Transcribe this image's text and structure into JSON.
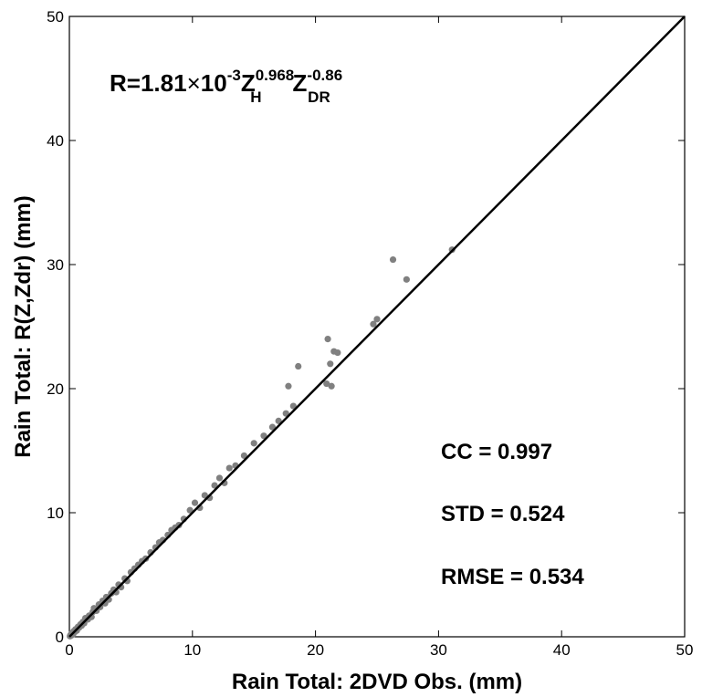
{
  "chart_data": {
    "type": "scatter",
    "title": "",
    "xlabel": "Rain Total: 2DVD Obs. (mm)",
    "ylabel": "Rain Total: R(Z,Zdr) (mm)",
    "xlim": [
      0,
      50
    ],
    "ylim": [
      0,
      50
    ],
    "x_ticks": [
      0,
      10,
      20,
      30,
      40,
      50
    ],
    "y_ticks": [
      0,
      10,
      20,
      30,
      40,
      50
    ],
    "grid": false,
    "point_color": "#808080",
    "line_color": "#000000",
    "reference_line": {
      "from": [
        0,
        0
      ],
      "to": [
        50,
        50
      ]
    },
    "formula": {
      "lhs": "R=1.81",
      "times": "×",
      "ten": "10",
      "ten_exp": "-3",
      "z1": "Z",
      "z1_sub": "H",
      "z1_sup": "0.968",
      "z2": "Z",
      "z2_sub": "DR",
      "z2_sup": "-0.86"
    },
    "stats": {
      "cc": "CC = 0.997",
      "std": "STD = 0.524",
      "rmse": "RMSE = 0.534"
    },
    "series": [
      {
        "points": [
          [
            0.05,
            0.05
          ],
          [
            0.1,
            0.15
          ],
          [
            0.15,
            0.1
          ],
          [
            0.2,
            0.3
          ],
          [
            0.3,
            0.2
          ],
          [
            0.35,
            0.45
          ],
          [
            0.45,
            0.4
          ],
          [
            0.5,
            0.6
          ],
          [
            0.6,
            0.5
          ],
          [
            0.7,
            0.8
          ],
          [
            0.8,
            0.75
          ],
          [
            0.9,
            1.0
          ],
          [
            1.0,
            0.9
          ],
          [
            1.1,
            1.2
          ],
          [
            1.2,
            1.1
          ],
          [
            1.3,
            1.5
          ],
          [
            1.5,
            1.4
          ],
          [
            1.6,
            1.7
          ],
          [
            1.8,
            1.6
          ],
          [
            1.9,
            2.0
          ],
          [
            2.0,
            2.3
          ],
          [
            2.2,
            2.1
          ],
          [
            2.4,
            2.6
          ],
          [
            2.5,
            2.4
          ],
          [
            2.7,
            2.9
          ],
          [
            2.9,
            2.7
          ],
          [
            3.0,
            3.2
          ],
          [
            3.2,
            3.0
          ],
          [
            3.4,
            3.5
          ],
          [
            3.6,
            3.8
          ],
          [
            3.8,
            3.6
          ],
          [
            4.0,
            4.2
          ],
          [
            4.2,
            4.0
          ],
          [
            4.5,
            4.7
          ],
          [
            4.7,
            4.5
          ],
          [
            5.0,
            5.2
          ],
          [
            5.3,
            5.5
          ],
          [
            5.6,
            5.8
          ],
          [
            5.9,
            6.1
          ],
          [
            6.2,
            6.3
          ],
          [
            6.6,
            6.8
          ],
          [
            7.0,
            7.2
          ],
          [
            7.3,
            7.6
          ],
          [
            7.6,
            7.8
          ],
          [
            8.0,
            8.2
          ],
          [
            8.3,
            8.6
          ],
          [
            8.6,
            8.8
          ],
          [
            8.9,
            9.0
          ],
          [
            9.3,
            9.5
          ],
          [
            9.8,
            10.2
          ],
          [
            10.2,
            10.8
          ],
          [
            10.6,
            10.4
          ],
          [
            11.0,
            11.4
          ],
          [
            11.4,
            11.2
          ],
          [
            11.8,
            12.2
          ],
          [
            12.2,
            12.8
          ],
          [
            12.6,
            12.4
          ],
          [
            13.0,
            13.6
          ],
          [
            13.5,
            13.8
          ],
          [
            14.2,
            14.6
          ],
          [
            15.0,
            15.6
          ],
          [
            15.8,
            16.2
          ],
          [
            16.5,
            16.9
          ],
          [
            17.0,
            17.4
          ],
          [
            17.6,
            18.0
          ],
          [
            18.2,
            18.6
          ],
          [
            18.6,
            21.8
          ],
          [
            17.8,
            20.2
          ],
          [
            20.9,
            20.4
          ],
          [
            21.0,
            24.0
          ],
          [
            21.2,
            22.0
          ],
          [
            21.3,
            20.2
          ],
          [
            21.5,
            23.0
          ],
          [
            21.8,
            22.9
          ],
          [
            24.7,
            25.2
          ],
          [
            25.0,
            25.6
          ],
          [
            26.3,
            30.4
          ],
          [
            27.4,
            28.8
          ],
          [
            31.1,
            31.2
          ]
        ]
      }
    ]
  }
}
